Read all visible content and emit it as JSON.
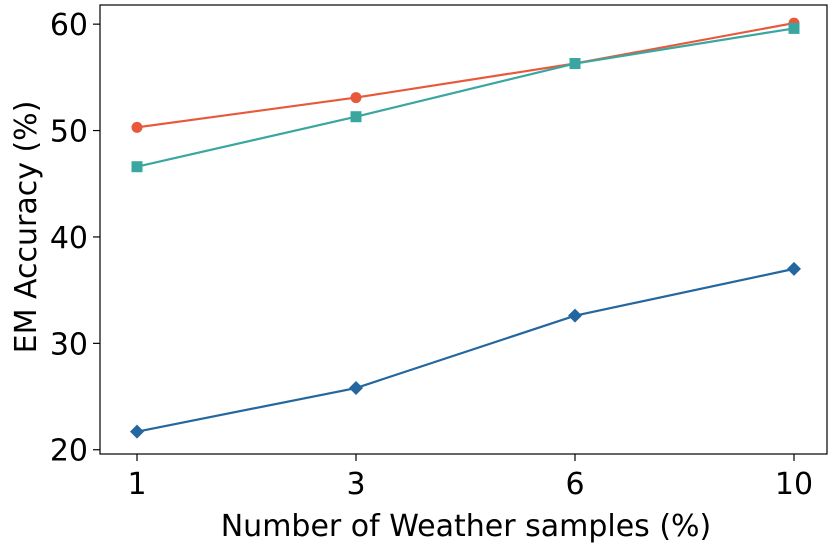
{
  "chart_data": {
    "type": "line",
    "title": "",
    "xlabel": "Number of Weather samples (%)",
    "ylabel": "EM Accuracy (%)",
    "x_categories": [
      "1",
      "3",
      "6",
      "10"
    ],
    "ylim": [
      19.6,
      61.8
    ],
    "yticks": [
      20,
      30,
      40,
      50,
      60
    ],
    "grid": false,
    "legend": "none",
    "series": [
      {
        "values": [
          50.3,
          53.1,
          56.3,
          60.1
        ],
        "color": "#e8593c",
        "marker": "circle"
      },
      {
        "values": [
          46.6,
          51.3,
          56.3,
          59.6
        ],
        "color": "#3aa6a0",
        "marker": "square"
      },
      {
        "values": [
          21.7,
          25.8,
          32.6,
          37.0
        ],
        "color": "#2466a0",
        "marker": "diamond"
      }
    ]
  }
}
